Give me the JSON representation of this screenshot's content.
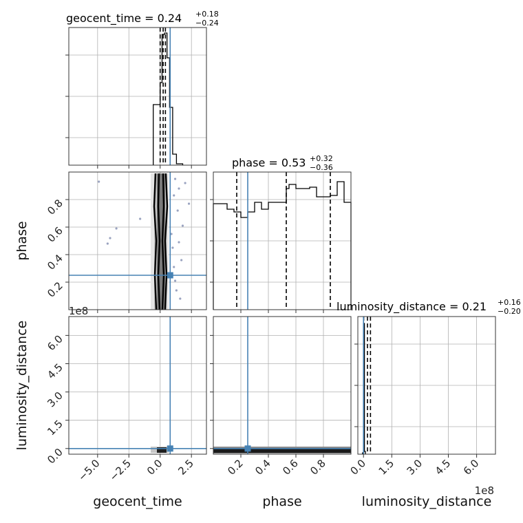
{
  "colors": {
    "truth": "#4682b4",
    "hist": "#000000",
    "grid": "#b0b0b0",
    "scatter": "#9aa3c0"
  },
  "chart_data": {
    "type": "corner",
    "parameters": [
      "geocent_time",
      "phase",
      "luminosity_distance"
    ],
    "grid": true,
    "truth": {
      "geocent_time": 0.8,
      "phase": 0.25,
      "luminosity_distance": 0.0
    },
    "titles": [
      {
        "name": "geocent_time",
        "median": "0.24",
        "plus": "+0.18",
        "minus": "−0.24"
      },
      {
        "name": "phase",
        "median": "0.53",
        "plus": "+0.32",
        "minus": "−0.36"
      },
      {
        "name": "luminosity_distance",
        "median": "0.21",
        "plus": "+0.16",
        "minus": "−0.20"
      }
    ],
    "axes": {
      "geocent_time": {
        "range": [
          -7.3,
          3.7
        ],
        "ticks": [
          -5.0,
          -2.5,
          0.0,
          2.5
        ],
        "ticklabels": [
          "−5.0",
          "−2.5",
          "0.0",
          "2.5"
        ]
      },
      "phase": {
        "range": [
          0.0,
          1.0
        ],
        "ticks": [
          0.2,
          0.4,
          0.6,
          0.8
        ],
        "ticklabels": [
          "0.2",
          "0.4",
          "0.6",
          "0.8"
        ]
      },
      "luminosity_distance": {
        "range": [
          -0.3,
          7.0
        ],
        "ticks": [
          0.0,
          1.5,
          3.0,
          4.5,
          6.0
        ],
        "ticklabels": [
          "0.0",
          "1.5",
          "3.0",
          "4.5",
          "6.0"
        ],
        "offset_label": "1e8"
      }
    },
    "diag_ylim": [
      0,
      1.0
    ],
    "histograms": {
      "geocent_time": {
        "edges": [
          -0.55,
          0.0,
          0.15,
          0.35,
          0.55,
          0.75,
          1.0,
          1.3,
          1.8
        ],
        "values": [
          0.44,
          0.6,
          0.95,
          0.96,
          0.78,
          0.42,
          0.08,
          0.01
        ],
        "quantiles": [
          0.0,
          0.24,
          0.42
        ]
      },
      "phase": {
        "edges": [
          0.0,
          0.1,
          0.15,
          0.2,
          0.25,
          0.3,
          0.35,
          0.4,
          0.45,
          0.53,
          0.55,
          0.6,
          0.7,
          0.75,
          0.85,
          0.9,
          0.95,
          1.0
        ],
        "values": [
          0.77,
          0.73,
          0.71,
          0.67,
          0.71,
          0.78,
          0.73,
          0.78,
          0.78,
          0.88,
          0.91,
          0.88,
          0.89,
          0.82,
          0.83,
          0.93,
          0.78
        ],
        "quantiles": [
          0.17,
          0.53,
          0.85
        ]
      },
      "luminosity_distance": {
        "edges": [
          -0.05,
          0.01,
          0.05,
          0.1
        ],
        "values": [
          0.01,
          0.95,
          0.02
        ],
        "quantiles": [
          0.01,
          0.21,
          0.37
        ]
      }
    },
    "scatter_geocent_phase": [
      [
        -4.9,
        0.93
      ],
      [
        -3.5,
        0.59
      ],
      [
        -4.2,
        0.48
      ],
      [
        -4.0,
        0.52
      ],
      [
        -1.6,
        0.66
      ],
      [
        1.2,
        0.95
      ],
      [
        1.5,
        0.88
      ],
      [
        1.8,
        0.61
      ],
      [
        1.1,
        0.31
      ],
      [
        1.4,
        0.72
      ],
      [
        1.0,
        0.45
      ],
      [
        2.0,
        0.92
      ],
      [
        1.3,
        0.14
      ],
      [
        1.6,
        0.08
      ],
      [
        1.1,
        0.83
      ],
      [
        0.9,
        0.55
      ],
      [
        1.7,
        0.36
      ],
      [
        1.2,
        0.21
      ],
      [
        2.3,
        0.77
      ],
      [
        1.5,
        0.49
      ]
    ]
  }
}
